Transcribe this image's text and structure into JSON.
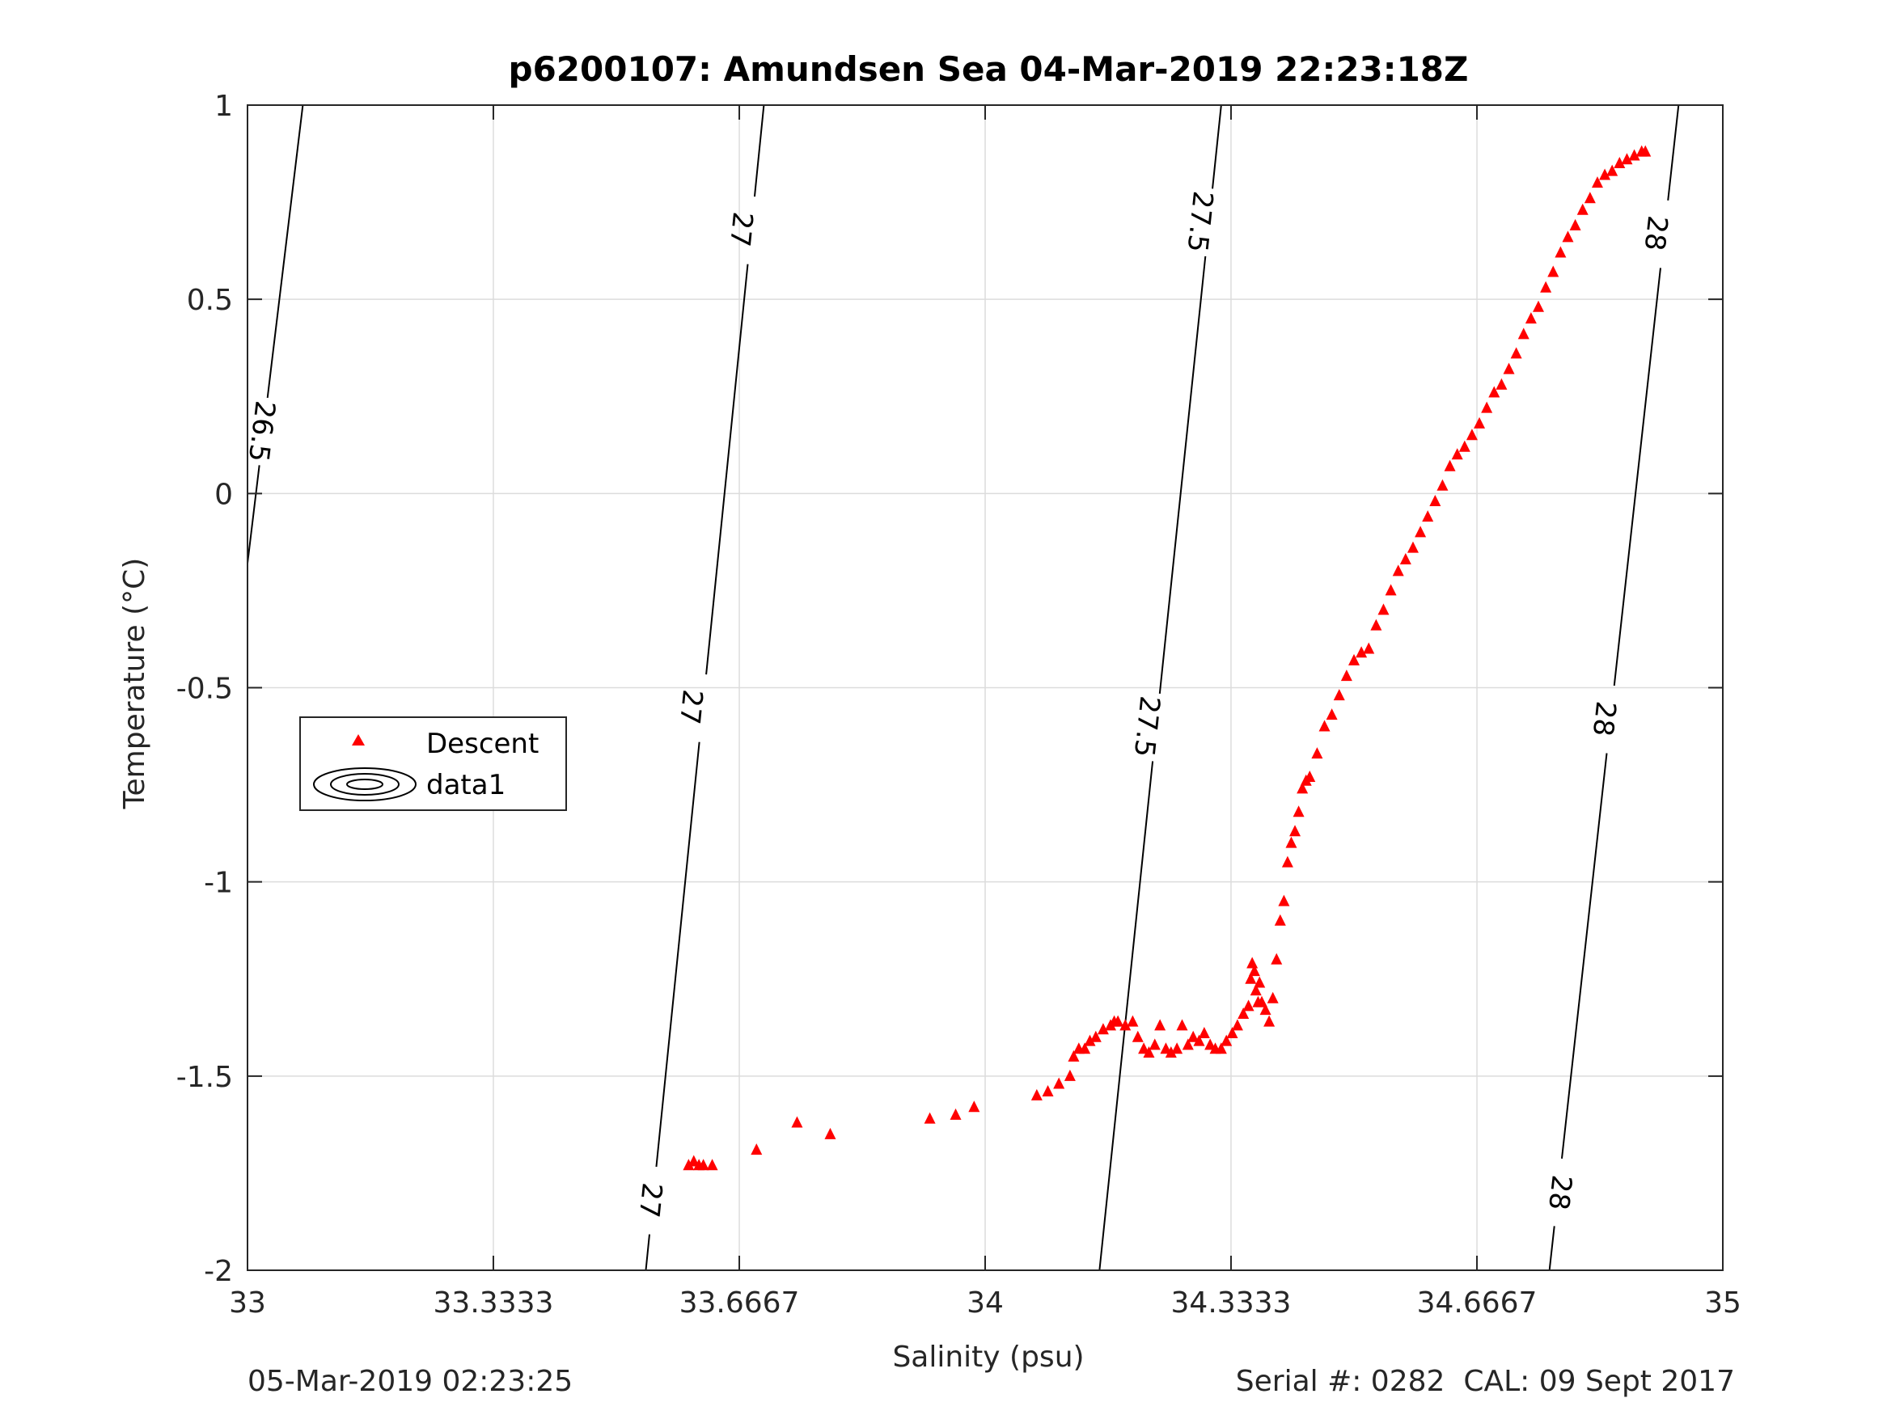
{
  "chart_data": {
    "type": "scatter",
    "title": "p6200107: Amundsen Sea 04-Mar-2019 22:23:18Z",
    "xlabel": "Salinity (psu)",
    "ylabel": "Temperature (°C)",
    "xlim": [
      33,
      35
    ],
    "ylim": [
      -2,
      1
    ],
    "x_ticks": [
      33,
      33.3333,
      33.6667,
      34,
      34.3333,
      34.6667,
      35
    ],
    "x_tick_labels": [
      "33",
      "33.3333",
      "33.6667",
      "34",
      "34.3333",
      "34.6667",
      "35"
    ],
    "y_ticks": [
      -2,
      -1.5,
      -1,
      -0.5,
      0,
      0.5,
      1
    ],
    "y_tick_labels": [
      "-2",
      "-1.5",
      "-1",
      "-0.5",
      "0",
      "0.5",
      "1"
    ],
    "grid": true,
    "legend_position": "middle-left",
    "legend": [
      "Descent",
      "data1"
    ],
    "series": [
      {
        "name": "Descent",
        "marker": "triangle",
        "color": "#ff0000",
        "x": [
          33.598,
          33.605,
          33.612,
          33.618,
          33.63,
          33.69,
          33.745,
          33.79,
          33.925,
          33.96,
          33.985,
          34.07,
          34.085,
          34.1,
          34.115,
          34.12,
          34.127,
          34.135,
          34.142,
          34.15,
          34.16,
          34.17,
          34.175,
          34.18,
          34.19,
          34.2,
          34.207,
          34.215,
          34.222,
          34.23,
          34.237,
          34.245,
          34.252,
          34.26,
          34.267,
          34.275,
          34.282,
          34.29,
          34.297,
          34.305,
          34.312,
          34.32,
          34.327,
          34.335,
          34.342,
          34.35,
          34.357,
          34.36,
          34.362,
          34.365,
          34.367,
          34.37,
          34.372,
          34.375,
          34.38,
          34.385,
          34.39,
          34.395,
          34.4,
          34.405,
          34.41,
          34.415,
          34.42,
          34.425,
          34.43,
          34.435,
          34.44,
          34.45,
          34.46,
          34.47,
          34.48,
          34.49,
          34.5,
          34.51,
          34.52,
          34.53,
          34.54,
          34.55,
          34.56,
          34.57,
          34.58,
          34.59,
          34.6,
          34.61,
          34.62,
          34.63,
          34.64,
          34.65,
          34.66,
          34.67,
          34.68,
          34.69,
          34.7,
          34.71,
          34.72,
          34.73,
          34.74,
          34.75,
          34.76,
          34.77,
          34.78,
          34.79,
          34.8,
          34.81,
          34.82,
          34.83,
          34.84,
          34.85,
          34.86,
          34.87,
          34.88,
          34.89,
          34.895
        ],
        "y": [
          -1.73,
          -1.72,
          -1.73,
          -1.73,
          -1.73,
          -1.69,
          -1.62,
          -1.65,
          -1.61,
          -1.6,
          -1.58,
          -1.55,
          -1.54,
          -1.52,
          -1.5,
          -1.45,
          -1.43,
          -1.43,
          -1.41,
          -1.4,
          -1.38,
          -1.37,
          -1.36,
          -1.36,
          -1.37,
          -1.36,
          -1.4,
          -1.43,
          -1.44,
          -1.42,
          -1.37,
          -1.43,
          -1.44,
          -1.43,
          -1.37,
          -1.42,
          -1.4,
          -1.41,
          -1.39,
          -1.42,
          -1.43,
          -1.43,
          -1.41,
          -1.39,
          -1.37,
          -1.34,
          -1.32,
          -1.25,
          -1.21,
          -1.23,
          -1.28,
          -1.31,
          -1.26,
          -1.31,
          -1.33,
          -1.36,
          -1.3,
          -1.2,
          -1.1,
          -1.05,
          -0.95,
          -0.9,
          -0.87,
          -0.82,
          -0.76,
          -0.74,
          -0.73,
          -0.67,
          -0.6,
          -0.57,
          -0.52,
          -0.47,
          -0.43,
          -0.41,
          -0.4,
          -0.34,
          -0.3,
          -0.25,
          -0.2,
          -0.17,
          -0.14,
          -0.1,
          -0.06,
          -0.02,
          0.02,
          0.07,
          0.1,
          0.12,
          0.15,
          0.18,
          0.22,
          0.26,
          0.28,
          0.32,
          0.36,
          0.41,
          0.45,
          0.48,
          0.53,
          0.57,
          0.62,
          0.66,
          0.69,
          0.73,
          0.76,
          0.8,
          0.82,
          0.83,
          0.85,
          0.86,
          0.87,
          0.88,
          0.88
        ]
      }
    ],
    "contours": [
      {
        "name": "data1",
        "levels": [
          26.5,
          27,
          27.5,
          28
        ],
        "lines": [
          {
            "level": "26.5",
            "x": [
              33.0,
              33.075
            ],
            "y": [
              -0.18,
              1.0
            ],
            "labels": [
              {
                "x": 33.02,
                "y": 0.16
              }
            ]
          },
          {
            "level": "27",
            "x": [
              33.54,
              33.7
            ],
            "y": [
              -2.0,
              1.0
            ],
            "labels": [
              {
                "x": 33.67,
                "y": 0.68
              },
              {
                "x": 33.602,
                "y": -0.55
              },
              {
                "x": 33.547,
                "y": -1.82
              }
            ]
          },
          {
            "level": "27.5",
            "x": [
              34.155,
              34.32
            ],
            "y": [
              -2.0,
              1.0
            ],
            "labels": [
              {
                "x": 34.292,
                "y": 0.7
              },
              {
                "x": 34.22,
                "y": -0.6
              }
            ]
          },
          {
            "level": "28",
            "x": [
              34.765,
              34.94
            ],
            "y": [
              -2.0,
              1.0
            ],
            "labels": [
              {
                "x": 34.91,
                "y": 0.67
              },
              {
                "x": 34.84,
                "y": -0.58
              },
              {
                "x": 34.78,
                "y": -1.8
              }
            ]
          }
        ]
      }
    ]
  },
  "footer": {
    "left": "05-Mar-2019 02:23:25",
    "right": "Serial #: 0282  CAL: 09 Sept 2017"
  }
}
